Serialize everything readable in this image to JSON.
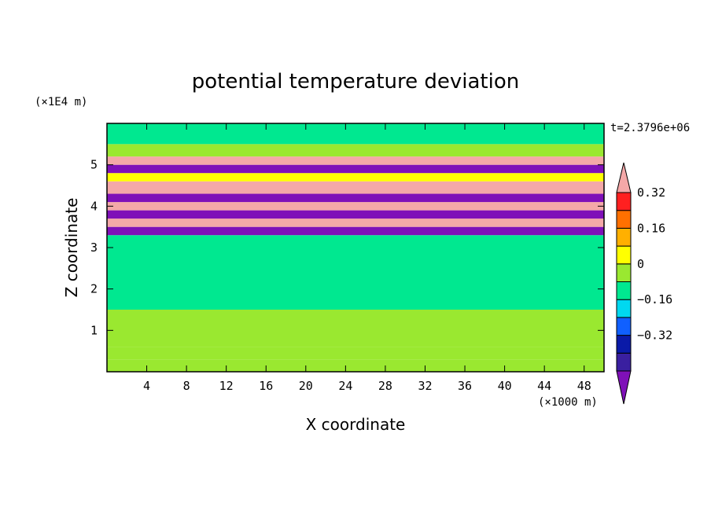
{
  "chart_data": {
    "type": "heatmap",
    "title": "potential temperature deviation",
    "xlabel": "X coordinate",
    "ylabel": "Z coordinate",
    "x_unit": "(×1000 m)",
    "y_unit": "(×1E4 m)",
    "time_label": "t=2.3796e+06",
    "x_ticks": [
      4,
      8,
      12,
      16,
      20,
      24,
      28,
      32,
      36,
      40,
      44,
      48
    ],
    "y_ticks": [
      1,
      2,
      3,
      4,
      5
    ],
    "xlim": [
      0,
      50
    ],
    "ylim": [
      0,
      6
    ],
    "colorbar": {
      "levels": [
        -0.48,
        -0.4,
        -0.32,
        -0.24,
        -0.16,
        -0.08,
        0,
        0.08,
        0.16,
        0.24,
        0.32,
        0.4
      ],
      "colors": [
        "#7f10b8",
        "#3a1fa0",
        "#0a1aa8",
        "#1060ff",
        "#00d8f0",
        "#00e890",
        "#9ae830",
        "#ffff00",
        "#ffb000",
        "#ff7000",
        "#ff2020",
        "#f4a8a8"
      ],
      "tick_labels": [
        "0.32",
        "0.16",
        "0",
        "−0.16",
        "−0.32"
      ],
      "tick_values": [
        0.32,
        0.16,
        0,
        -0.16,
        -0.32
      ]
    },
    "bands": [
      {
        "z": [
          0,
          0.3
        ],
        "value": 0.03
      },
      {
        "z": [
          0.3,
          0.6
        ],
        "value": 0.0
      },
      {
        "z": [
          0.6,
          1.5
        ],
        "value": 0.03
      },
      {
        "z": [
          1.5,
          3.3
        ],
        "value": -0.02
      },
      {
        "z": [
          3.3,
          3.5
        ],
        "value": -0.45
      },
      {
        "z": [
          3.5,
          3.7
        ],
        "value": 0.42
      },
      {
        "z": [
          3.7,
          3.9
        ],
        "value": -0.45
      },
      {
        "z": [
          3.9,
          4.1
        ],
        "value": 0.42
      },
      {
        "z": [
          4.1,
          4.3
        ],
        "value": -0.45
      },
      {
        "z": [
          4.3,
          4.6
        ],
        "value": 0.42
      },
      {
        "z": [
          4.6,
          4.8
        ],
        "value": 0.1
      },
      {
        "z": [
          4.8,
          5.0
        ],
        "value": -0.45
      },
      {
        "z": [
          5.0,
          5.2
        ],
        "value": 0.42
      },
      {
        "z": [
          5.2,
          5.5
        ],
        "value": 0.03
      },
      {
        "z": [
          5.5,
          6.0
        ],
        "value": -0.02
      }
    ]
  }
}
